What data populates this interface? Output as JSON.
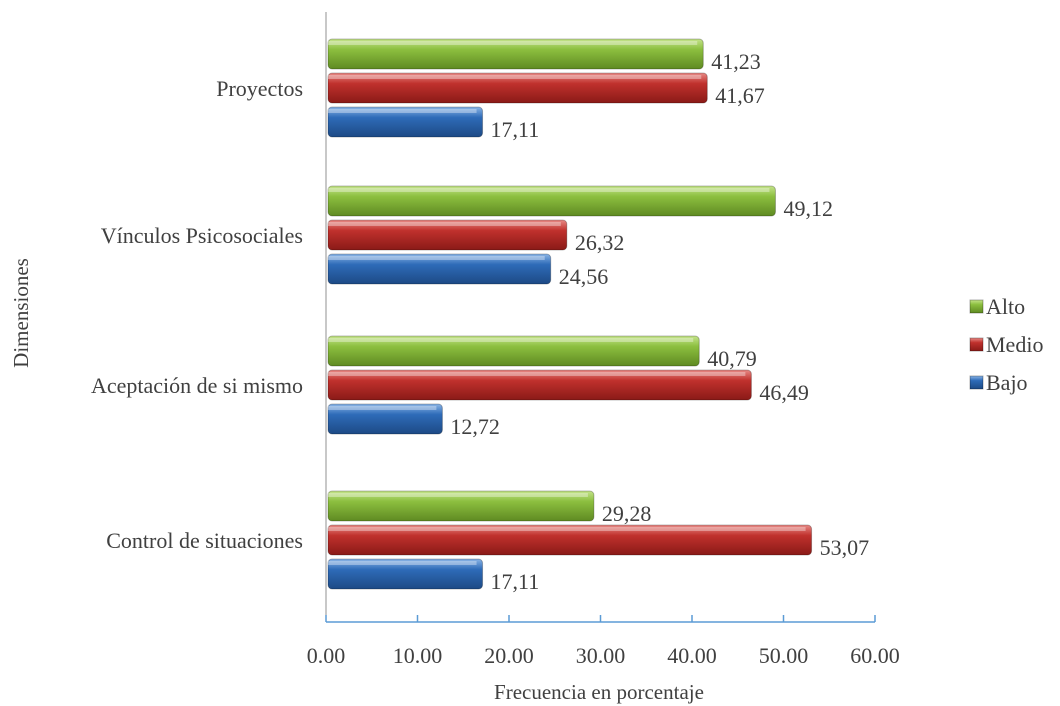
{
  "chart_data": {
    "type": "bar",
    "orientation": "horizontal",
    "title": "",
    "xlabel": "Frecuencia en porcentaje",
    "ylabel": "Dimensiones",
    "xlim": [
      0,
      60
    ],
    "x_ticks": [
      "0.00",
      "10.00",
      "20.00",
      "30.00",
      "40.00",
      "50.00",
      "60.00"
    ],
    "categories": [
      "Proyectos",
      "Vínculos Psicosociales",
      "Aceptación de si mismo",
      "Control de situaciones"
    ],
    "series": [
      {
        "name": "Alto",
        "color": "#8cbf3f",
        "values": [
          41.23,
          49.12,
          40.79,
          29.28
        ],
        "labels": [
          "41,23",
          "49,12",
          "40,79",
          "29,28"
        ]
      },
      {
        "name": "Medio",
        "color": "#c0312d",
        "values": [
          41.67,
          26.32,
          46.49,
          53.07
        ],
        "labels": [
          "41,67",
          "26,32",
          "46,49",
          "53,07"
        ]
      },
      {
        "name": "Bajo",
        "color": "#2e6bb8",
        "values": [
          17.11,
          24.56,
          12.72,
          17.11
        ],
        "labels": [
          "17,11",
          "24,56",
          "12,72",
          "17,11"
        ]
      }
    ],
    "legend_position": "right",
    "grid": false
  }
}
